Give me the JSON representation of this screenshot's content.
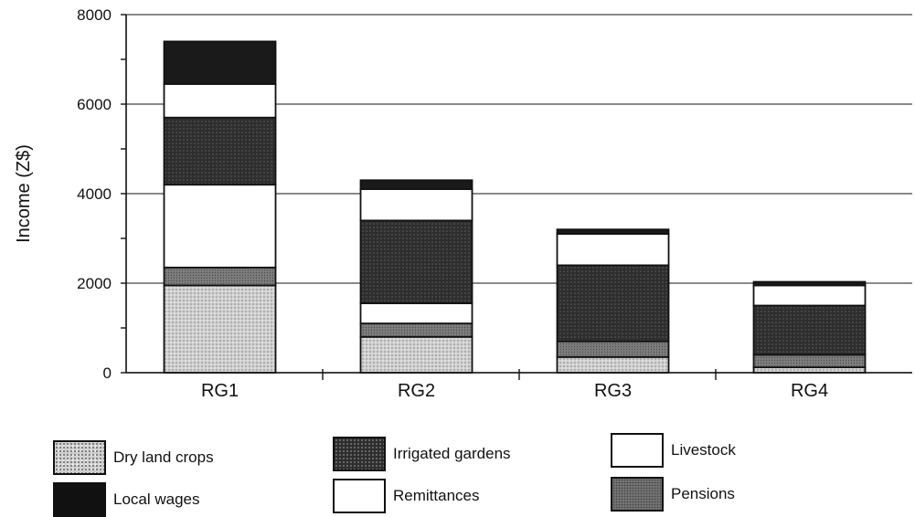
{
  "chart_data": {
    "type": "bar",
    "stacked": true,
    "ylabel": "Income (Z$)",
    "ylim": [
      0,
      8000
    ],
    "yticks": [
      0,
      2000,
      4000,
      6000,
      8000
    ],
    "grid": true,
    "categories": [
      "RG1",
      "RG2",
      "RG3",
      "RG4"
    ],
    "series": [
      {
        "name": "Dry land crops",
        "color": "#cfcfcf",
        "values": [
          1950,
          800,
          350,
          120
        ]
      },
      {
        "name": "Pensions",
        "color": "#7d7d7d",
        "values": [
          400,
          300,
          350,
          280
        ]
      },
      {
        "name": "Livestock",
        "color": "#ffffff",
        "values": [
          1850,
          450,
          0,
          0
        ]
      },
      {
        "name": "Irrigated gardens",
        "color": "#2e2e2e",
        "values": [
          1500,
          1850,
          1700,
          1100
        ]
      },
      {
        "name": "Remittances",
        "color": "#ffffff",
        "values": [
          750,
          700,
          700,
          450
        ]
      },
      {
        "name": "Local wages",
        "color": "#1a1a1a",
        "values": [
          950,
          200,
          100,
          80
        ]
      }
    ],
    "legend_position": "bottom"
  }
}
